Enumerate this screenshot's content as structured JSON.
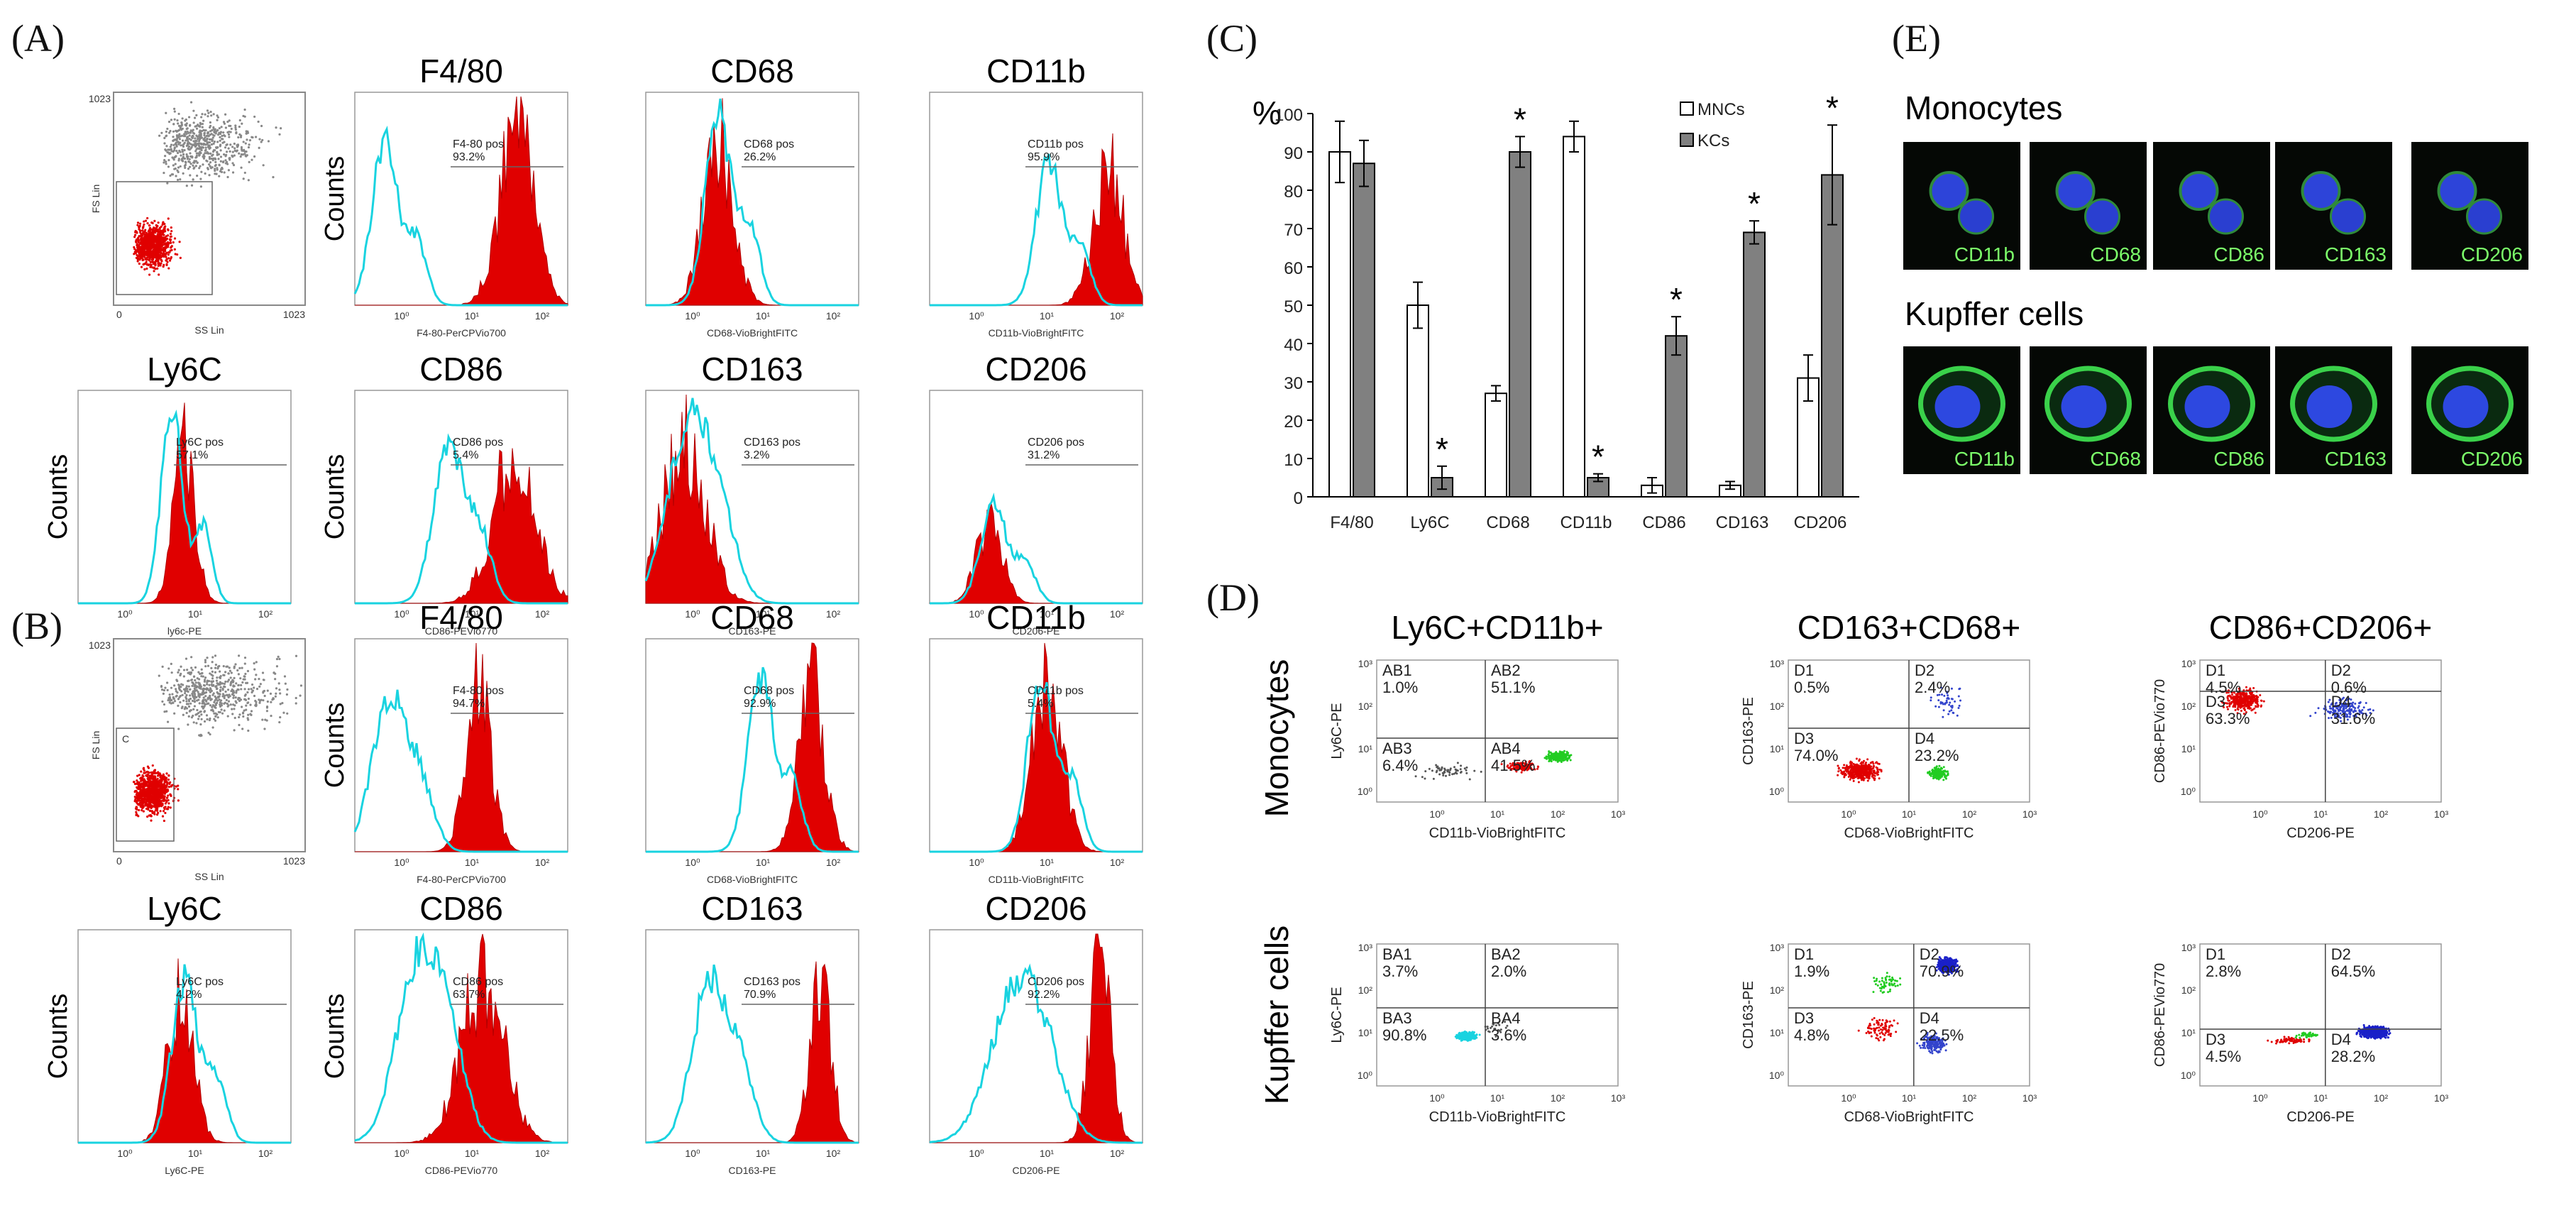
{
  "panel_labels": {
    "A": "(A)",
    "B": "(B)",
    "C": "(C)",
    "D": "(D)",
    "E": "(E)"
  },
  "hist_ylabel": "Counts",
  "scatter_axis": {
    "ylabel": "FS Lin",
    "xlabel": "SS Lin",
    "tick_max": "1023",
    "tick_min": "0",
    "gate_label": "C"
  },
  "histograms_A": [
    {
      "title": "F4/80",
      "gate": "F4-80 pos",
      "pct": "93.2%",
      "xlabel": "F4-80-PerCPVio700"
    },
    {
      "title": "CD68",
      "gate": "CD68 pos",
      "pct": "26.2%",
      "xlabel": "CD68-VioBrightFITC"
    },
    {
      "title": "CD11b",
      "gate": "CD11b pos",
      "pct": "95.9%",
      "xlabel": "CD11b-VioBrightFITC"
    },
    {
      "title": "Ly6C",
      "gate": "Ly6C pos",
      "pct": "57.1%",
      "xlabel": "ly6c-PE"
    },
    {
      "title": "CD86",
      "gate": "CD86 pos",
      "pct": "5.4%",
      "xlabel": "CD86-PEVio770"
    },
    {
      "title": "CD163",
      "gate": "CD163 pos",
      "pct": "3.2%",
      "xlabel": "CD163-PE"
    },
    {
      "title": "CD206",
      "gate": "CD206 pos",
      "pct": "31.2%",
      "xlabel": "CD206-PE"
    }
  ],
  "histograms_B": [
    {
      "title": "F4/80",
      "gate": "F4-80 pos",
      "pct": "94.7%",
      "xlabel": "F4-80-PerCPVio700"
    },
    {
      "title": "CD68",
      "gate": "CD68 pos",
      "pct": "92.9%",
      "xlabel": "CD68-VioBrightFITC"
    },
    {
      "title": "CD11b",
      "gate": "CD11b pos",
      "pct": "5.4%",
      "xlabel": "CD11b-VioBrightFITC"
    },
    {
      "title": "Ly6C",
      "gate": "Ly6C pos",
      "pct": "4.2%",
      "xlabel": "Ly6C-PE"
    },
    {
      "title": "CD86",
      "gate": "CD86 pos",
      "pct": "63.7%",
      "xlabel": "CD86-PEVio770"
    },
    {
      "title": "CD163",
      "gate": "CD163 pos",
      "pct": "70.9%",
      "xlabel": "CD163-PE"
    },
    {
      "title": "CD206",
      "gate": "CD206 pos",
      "pct": "92.2%",
      "xlabel": "CD206-PE"
    }
  ],
  "chart_data": {
    "type": "bar",
    "title": "(C)",
    "ylabel": "%",
    "xlabel": "",
    "ylim": [
      0,
      100
    ],
    "yticks": [
      "0",
      "10",
      "20",
      "30",
      "40",
      "50",
      "60",
      "70",
      "80",
      "90",
      "100"
    ],
    "categories": [
      "F4/80",
      "Ly6C",
      "CD68",
      "CD11b",
      "CD86",
      "CD163",
      "CD206"
    ],
    "series": [
      {
        "name": "MNCs",
        "color": "#ffffff",
        "values": [
          90,
          50,
          27,
          94,
          3,
          3,
          31
        ],
        "errors": [
          8,
          6,
          2,
          4,
          2,
          1,
          6
        ]
      },
      {
        "name": "KCs",
        "color": "#808080",
        "values": [
          87,
          5,
          90,
          5,
          42,
          69,
          84
        ],
        "errors": [
          6,
          3,
          4,
          1,
          5,
          3,
          13
        ]
      }
    ],
    "significance": [
      "",
      "*",
      "*",
      "*",
      "*",
      "*",
      "*"
    ],
    "legend_position": "top-right"
  },
  "panelD": {
    "cols": [
      "Ly6C+CD11b+",
      "CD163+CD68+",
      "CD86+CD206+"
    ],
    "row_labels": [
      "Monocytes",
      "Kupffer cells"
    ],
    "plots": [
      {
        "xlab": "CD11b-VioBrightFITC",
        "ylab": "Ly6C-PE",
        "q": [
          [
            "AB1",
            "1.0%"
          ],
          [
            "AB2",
            "51.1%"
          ],
          [
            "AB3",
            "6.4%"
          ],
          [
            "AB4",
            "41.5%"
          ]
        ]
      },
      {
        "xlab": "CD68-VioBrightFITC",
        "ylab": "CD163-PE",
        "q": [
          [
            "D1",
            "0.5%"
          ],
          [
            "D2",
            "2.4%"
          ],
          [
            "D3",
            "74.0%"
          ],
          [
            "D4",
            "23.2%"
          ]
        ]
      },
      {
        "xlab": "CD206-PE",
        "ylab": "CD86-PEVio770",
        "q": [
          [
            "D1",
            "4.5%"
          ],
          [
            "D2",
            "0.6%"
          ],
          [
            "D3",
            "63.3%"
          ],
          [
            "D4",
            "31.6%"
          ]
        ]
      },
      {
        "xlab": "CD11b-VioBrightFITC",
        "ylab": "Ly6C-PE",
        "q": [
          [
            "BA1",
            "3.7%"
          ],
          [
            "BA2",
            "2.0%"
          ],
          [
            "BA3",
            "90.8%"
          ],
          [
            "BA4",
            "3.6%"
          ]
        ]
      },
      {
        "xlab": "CD68-VioBrightFITC",
        "ylab": "CD163-PE",
        "q": [
          [
            "D1",
            "1.9%"
          ],
          [
            "D2",
            "70.9%"
          ],
          [
            "D3",
            "4.8%"
          ],
          [
            "D4",
            "22.5%"
          ]
        ]
      },
      {
        "xlab": "CD206-PE",
        "ylab": "CD86-PEVio770",
        "q": [
          [
            "D1",
            "2.8%"
          ],
          [
            "D2",
            "64.5%"
          ],
          [
            "D3",
            "4.5%"
          ],
          [
            "D4",
            "28.2%"
          ]
        ]
      }
    ]
  },
  "panelE": {
    "headings": [
      "Monocytes",
      "Kupffer cells"
    ],
    "markers": [
      "CD11b",
      "CD68",
      "CD86",
      "CD163",
      "CD206"
    ]
  },
  "colors": {
    "red": "#e00000",
    "cyan": "#19d3e0",
    "gray_bar": "#808080"
  }
}
